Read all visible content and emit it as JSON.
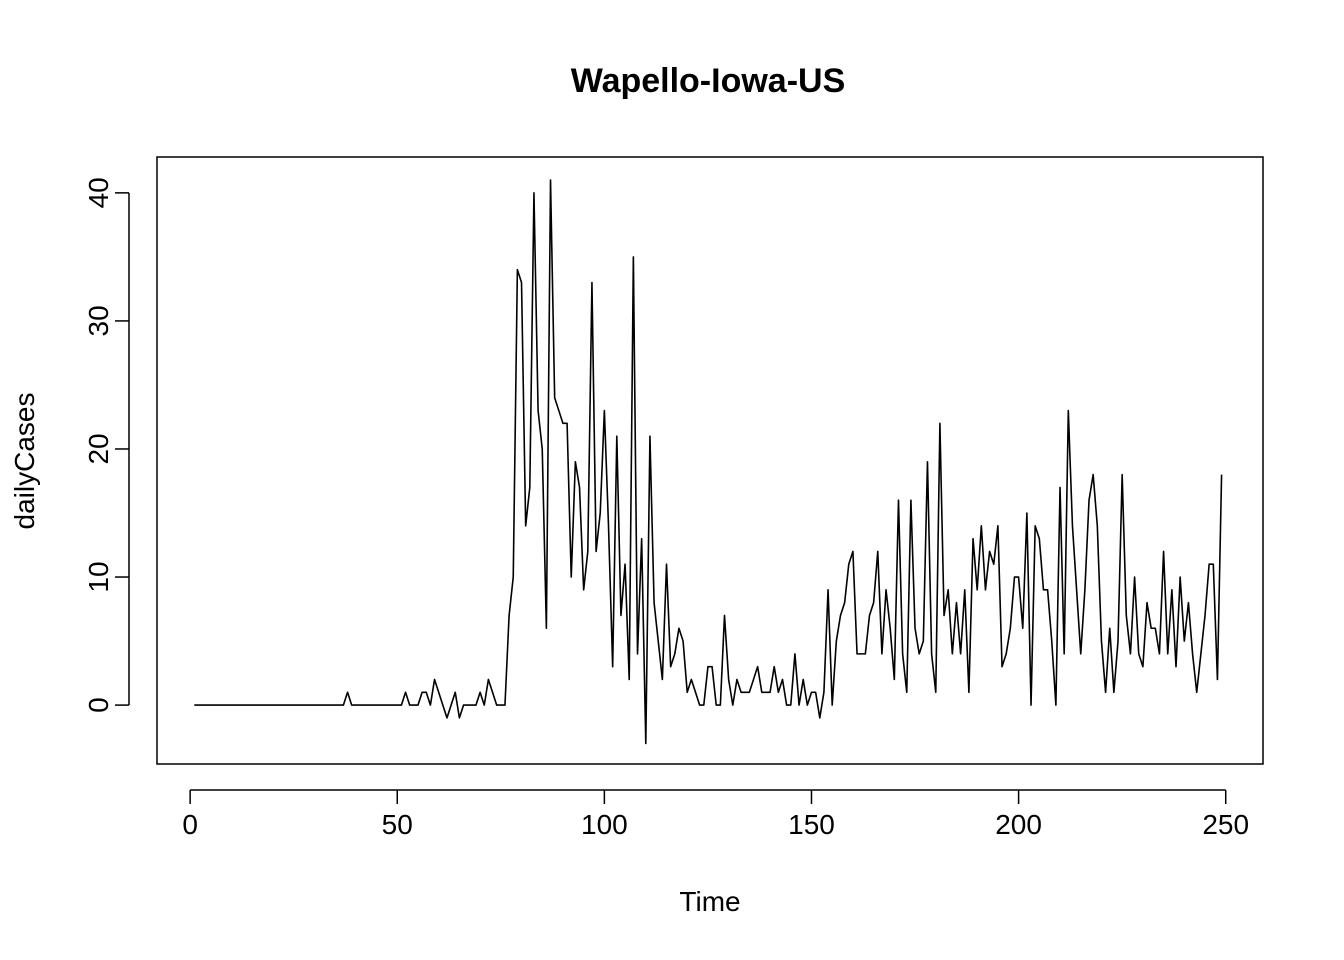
{
  "chart_data": {
    "type": "line",
    "title": "Wapello-Iowa-US",
    "xlabel": "Time",
    "ylabel": "dailyCases",
    "xlim": [
      -8,
      259
    ],
    "ylim": [
      -4.6,
      42.8
    ],
    "xticks": [
      0,
      50,
      100,
      150,
      200,
      250
    ],
    "yticks": [
      0,
      10,
      20,
      30,
      40
    ],
    "grid": false,
    "line_color": "#000000",
    "series": [
      {
        "x_start": 1,
        "values": [
          0,
          0,
          0,
          0,
          0,
          0,
          0,
          0,
          0,
          0,
          0,
          0,
          0,
          0,
          0,
          0,
          0,
          0,
          0,
          0,
          0,
          0,
          0,
          0,
          0,
          0,
          0,
          0,
          0,
          0,
          0,
          0,
          0,
          0,
          0,
          0,
          0,
          1,
          0,
          0,
          0,
          0,
          0,
          0,
          0,
          0,
          0,
          0,
          0,
          0,
          0,
          1,
          0,
          0,
          0,
          1,
          1,
          0,
          2,
          1,
          0,
          -1,
          0,
          1,
          -1,
          0,
          0,
          0,
          0,
          1,
          0,
          2,
          1,
          0,
          0,
          0,
          7,
          10,
          34,
          33,
          14,
          17,
          40,
          23,
          20,
          6,
          41,
          24,
          23,
          22,
          22,
          10,
          19,
          17,
          9,
          12,
          33,
          12,
          15,
          23,
          14,
          3,
          21,
          7,
          11,
          2,
          35,
          4,
          13,
          -3,
          21,
          8,
          5,
          2,
          11,
          3,
          4,
          6,
          5,
          1,
          2,
          1,
          0,
          0,
          3,
          3,
          0,
          0,
          7,
          2,
          0,
          2,
          1,
          1,
          1,
          2,
          3,
          1,
          1,
          1,
          3,
          1,
          2,
          0,
          0,
          4,
          0,
          2,
          0,
          1,
          1,
          -1,
          1,
          9,
          0,
          5,
          7,
          8,
          11,
          12,
          4,
          4,
          4,
          7,
          8,
          12,
          4,
          9,
          6,
          2,
          16,
          4,
          1,
          16,
          6,
          4,
          5,
          19,
          4,
          1,
          22,
          7,
          9,
          4,
          8,
          4,
          9,
          1,
          13,
          9,
          14,
          9,
          12,
          11,
          14,
          3,
          4,
          6,
          10,
          10,
          6,
          15,
          0,
          14,
          13,
          9,
          9,
          5,
          0,
          17,
          4,
          23,
          14,
          9,
          4,
          9,
          16,
          18,
          14,
          5,
          1,
          6,
          1,
          5,
          18,
          7,
          4,
          10,
          4,
          3,
          8,
          6,
          6,
          4,
          12,
          4,
          9,
          3,
          10,
          5,
          8,
          4,
          1,
          4,
          7,
          11,
          11,
          2,
          18
        ]
      }
    ]
  }
}
